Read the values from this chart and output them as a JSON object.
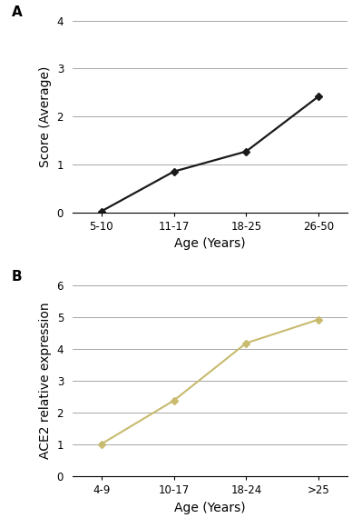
{
  "panel_A": {
    "label": "A",
    "x_categories": [
      "5-10",
      "11-17",
      "18-25",
      "26-50"
    ],
    "y_values": [
      0.02,
      0.85,
      1.27,
      2.42
    ],
    "ylabel": "Score (Average)",
    "xlabel": "Age (Years)",
    "ylim": [
      0,
      4
    ],
    "yticks": [
      0,
      1,
      2,
      3,
      4
    ],
    "line_color": "#1a1a1a",
    "marker": "D",
    "marker_size": 4,
    "line_width": 1.6
  },
  "panel_B": {
    "label": "B",
    "x_categories": [
      "4-9",
      "10-17",
      "18-24",
      ">25"
    ],
    "y_values": [
      1.02,
      2.38,
      4.18,
      4.92
    ],
    "ylabel": "ACE2 relative expression",
    "xlabel": "Age (Years)",
    "ylim": [
      0,
      6
    ],
    "yticks": [
      0,
      1,
      2,
      3,
      4,
      5,
      6
    ],
    "line_color": "#c8bb6e",
    "marker": "D",
    "marker_size": 4,
    "line_width": 1.5
  },
  "background_color": "#ffffff",
  "label_fontsize": 11,
  "tick_fontsize": 8.5,
  "axis_label_fontsize": 10,
  "grid_color": "#999999",
  "grid_linewidth": 0.6
}
